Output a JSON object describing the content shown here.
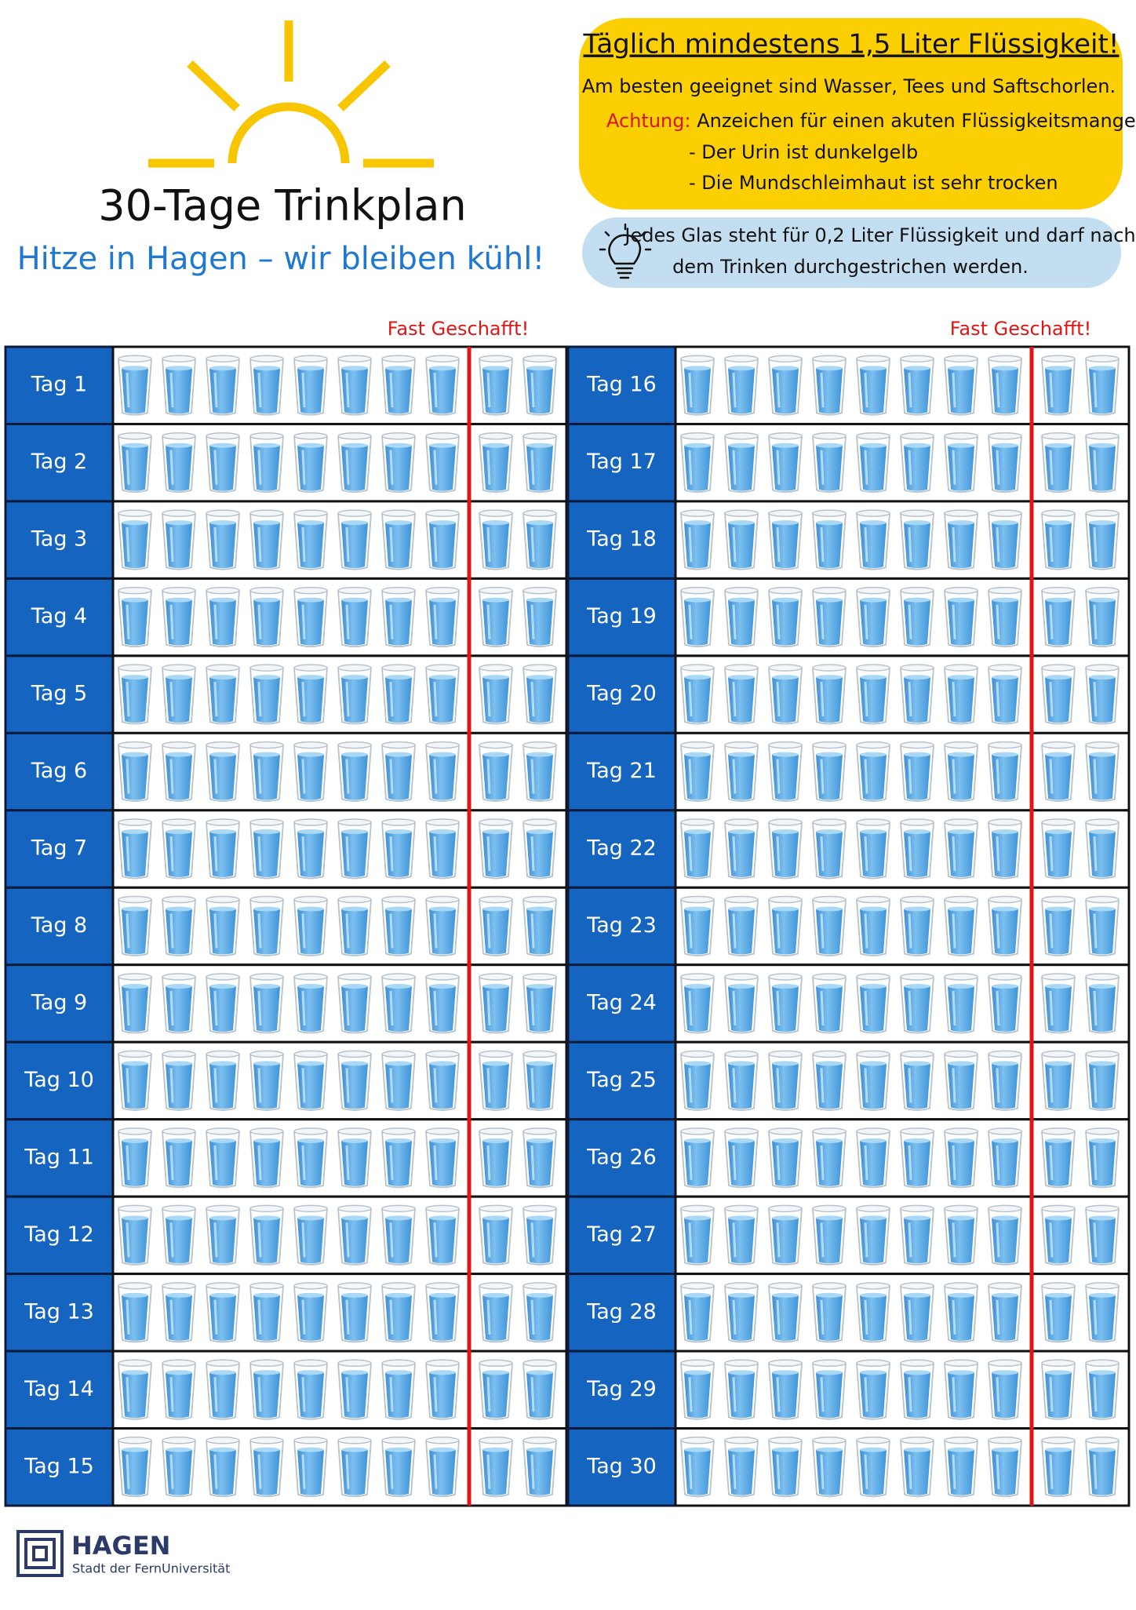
{
  "header": {
    "title": "30-Tage Trinkplan",
    "subtitle": "Hitze in Hagen – wir bleiben kühl!"
  },
  "info_box": {
    "title": "Täglich mindestens 1,5 Liter Flüssigkeit!",
    "line": "Am besten geeignet sind Wasser, Tees und Saftschorlen.",
    "warning_label": "Achtung:",
    "warning_text": "Anzeichen für einen akuten Flüssigkeitsmangel:",
    "bullets": [
      "- Der Urin ist dunkelgelb",
      "- Die Mundschleimhaut ist sehr trocken"
    ]
  },
  "hint": {
    "lines": [
      "Jedes Glas steht für 0,2 Liter Flüssigkeit und darf nach",
      "dem Trinken durchgestrichen werden."
    ]
  },
  "milestone_labels": [
    "Fast Geschafft!",
    "Fast Geschafft!"
  ],
  "days": [
    "Tag 1",
    "Tag 2",
    "Tag 3",
    "Tag 4",
    "Tag 5",
    "Tag 6",
    "Tag 7",
    "Tag 8",
    "Tag 9",
    "Tag 10",
    "Tag 11",
    "Tag 12",
    "Tag 13",
    "Tag 14",
    "Tag 15",
    "Tag 16",
    "Tag 17",
    "Tag 18",
    "Tag 19",
    "Tag 20",
    "Tag 21",
    "Tag 22",
    "Tag 23",
    "Tag 24",
    "Tag 25",
    "Tag 26",
    "Tag 27",
    "Tag 28",
    "Tag 29",
    "Tag 30"
  ],
  "logo": {
    "name": "HAGEN",
    "tagline": "Stadt der FernUniversität"
  }
}
